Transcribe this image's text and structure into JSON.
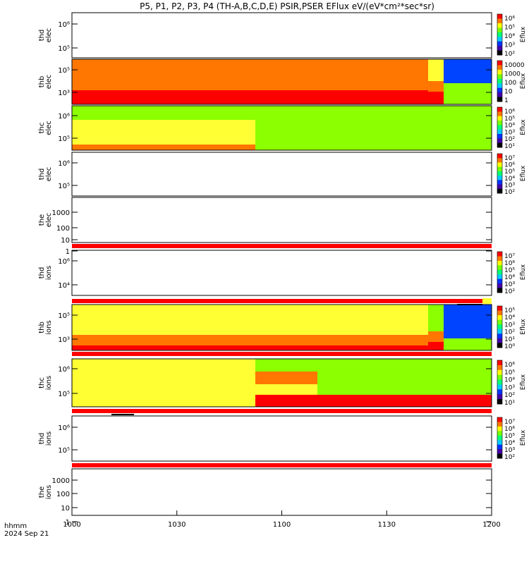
{
  "title": "P5, P1, P2, P3, P4 (TH-A,B,C,D,E) PSIR,PSER EFlux eV/(eV*cm²*sec*sr)",
  "time_label": "hhmm",
  "date_label": "2024 Sep 21",
  "colorbar_label": "Eflux",
  "colors": {
    "red": "#ff0000",
    "orange": "#ff7700",
    "yellow": "#ffff33",
    "green": "#8cff00",
    "blue": "#0044ff"
  },
  "chart_data": {
    "type": "heatmap",
    "x_ticks": [
      "1000",
      "1030",
      "1100",
      "1130",
      "1200"
    ],
    "x_range": [
      "10:00",
      "12:00"
    ],
    "panels": [
      {
        "label": [
          "thd",
          "elec"
        ],
        "y_ticks": [
          "10⁶",
          "10⁵"
        ],
        "log_y": true,
        "spectrogram": false,
        "colorbar": [
          "10⁶",
          "10⁵",
          "10⁴",
          "10³",
          "10²"
        ]
      },
      {
        "label": [
          "thb",
          "elec"
        ],
        "y_ticks": [
          "10⁵",
          "10³"
        ],
        "log_y": true,
        "spectrogram": true,
        "colorbar": [
          "10000",
          "1000",
          "100",
          "10",
          "1"
        ]
      },
      {
        "label": [
          "thc",
          "elec"
        ],
        "y_ticks": [
          "10⁶",
          "10⁵"
        ],
        "log_y": true,
        "spectrogram": true,
        "colorbar": [
          "10⁶",
          "10⁵",
          "10⁴",
          "10³",
          "10²",
          "10¹"
        ]
      },
      {
        "label": [
          "thd",
          "elec"
        ],
        "y_ticks": [
          "10⁶",
          "10⁵"
        ],
        "log_y": true,
        "spectrogram": false,
        "colorbar": [
          "10⁷",
          "10⁶",
          "10⁵",
          "10⁴",
          "10³",
          "10²"
        ]
      },
      {
        "label": [
          "the",
          "elec"
        ],
        "y_ticks": [
          "1000",
          "100",
          "10",
          "1"
        ],
        "log_y": true,
        "spectrogram": false,
        "colorbar": []
      },
      {
        "label": [
          "thd",
          "ions"
        ],
        "y_ticks": [
          "10⁶",
          "10⁴"
        ],
        "log_y": true,
        "spectrogram": false,
        "colorbar": [
          "10⁷",
          "10⁶",
          "10⁵",
          "10⁴",
          "10³",
          "10²"
        ]
      },
      {
        "label": [
          "thb",
          "ions"
        ],
        "y_ticks": [
          "10⁵",
          "10³"
        ],
        "log_y": true,
        "spectrogram": true,
        "colorbar": [
          "10⁵",
          "10⁴",
          "10³",
          "10²",
          "10¹",
          "10⁰"
        ]
      },
      {
        "label": [
          "thc",
          "ions"
        ],
        "y_ticks": [
          "10⁶",
          "10⁵"
        ],
        "log_y": true,
        "spectrogram": true,
        "colorbar": [
          "10⁶",
          "10⁵",
          "10⁴",
          "10³",
          "10²",
          "10¹"
        ]
      },
      {
        "label": [
          "thd",
          "ions"
        ],
        "y_ticks": [
          "10⁶",
          "10⁵"
        ],
        "log_y": true,
        "spectrogram": false,
        "colorbar": [
          "10⁷",
          "10⁶",
          "10⁵",
          "10⁴",
          "10³",
          "10²"
        ]
      },
      {
        "label": [
          "the",
          "ions"
        ],
        "y_ticks": [
          "1000",
          "100",
          "10",
          "1"
        ],
        "log_y": true,
        "spectrogram": false,
        "colorbar": []
      }
    ]
  }
}
